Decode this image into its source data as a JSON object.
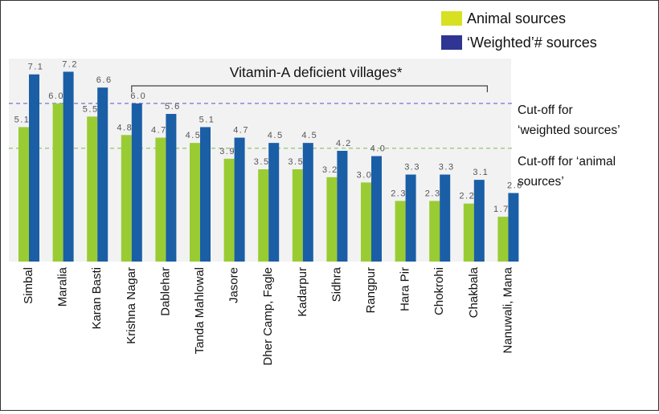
{
  "chart_data": {
    "type": "bar",
    "categories": [
      "Simbal",
      "Maralia",
      "Karan Basti",
      "Krishna Nagar",
      "Dablehar",
      "Tanda Mahlowal",
      "Jasore",
      "Dher Camp, Fagle",
      "Kadarpur",
      "Sidhra",
      "Rangpur",
      "Hara Pir",
      "Chokrohi",
      "Chakbala",
      "Nanuwali, Mana"
    ],
    "series": [
      {
        "name": "Animal sources",
        "color": "#99cc33",
        "values": [
          5.1,
          6.0,
          5.5,
          4.8,
          4.7,
          4.5,
          3.9,
          3.5,
          3.5,
          3.2,
          3.0,
          2.3,
          2.3,
          2.2,
          1.7
        ]
      },
      {
        "name": "‘Weighted’# sources",
        "color": "#1a5ea6",
        "values": [
          7.1,
          7.2,
          6.6,
          6.0,
          5.6,
          5.1,
          4.7,
          4.5,
          4.5,
          4.2,
          4.0,
          3.3,
          3.3,
          3.1,
          2.6
        ]
      }
    ],
    "value_labels": [
      [
        "5.1",
        "6.0",
        "5.5",
        "4.8",
        "4.7",
        "4.5",
        "3.9",
        "3.5",
        "3.5",
        "3.2",
        "3.0",
        "2.3",
        "2.3",
        "2.2",
        "1.7"
      ],
      [
        "7.1",
        "7.2",
        "6.6",
        "6.0",
        "5.6",
        "5.1",
        "4.7",
        "4.5",
        "4.5",
        "4.2",
        "4.0",
        "3.3",
        "3.3",
        "3.1",
        "2.6"
      ]
    ],
    "ylim": [
      0,
      7.7
    ],
    "cutoffs": [
      {
        "value": 6.0,
        "color": "#7a6fd0",
        "label_line1": "Cut-off for",
        "label_line2": "‘weighted sources’"
      },
      {
        "value": 4.3,
        "color": "#8fc86a",
        "label_line1": "Cut-off for ‘animal",
        "label_line2": "sources’"
      }
    ],
    "bracket": {
      "label": "Vitamin-A deficient villages*",
      "from_category": 3,
      "to_category": 14
    },
    "legend": {
      "position": "top-right"
    },
    "grid": false
  }
}
